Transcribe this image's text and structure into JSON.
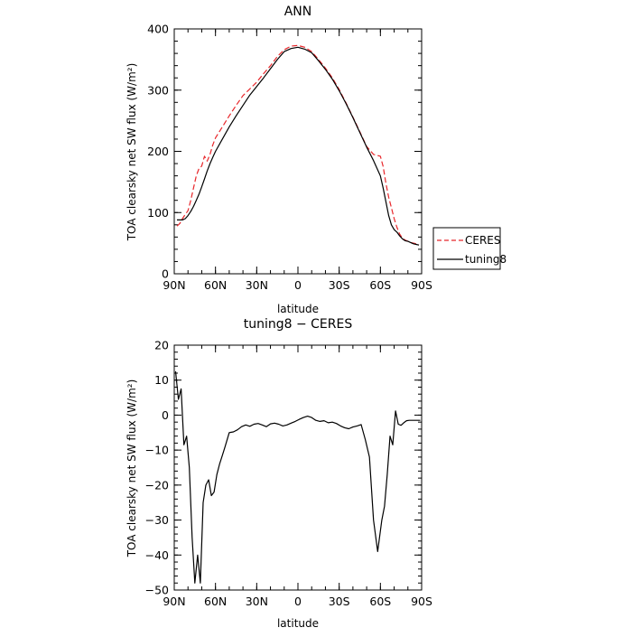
{
  "legend": {
    "ceres_label": "CERES",
    "model_label": "tuning8",
    "ceres_color": "#e8262a",
    "model_color": "#000000",
    "placement": "right"
  },
  "chart_data": [
    {
      "type": "line",
      "title": "ANN",
      "xlabel": "latitude",
      "ylabel": "TOA clearsky net SW flux (W/m²)",
      "xlim": [
        90,
        -90
      ],
      "ylim": [
        0,
        400
      ],
      "yticks": [
        0,
        100,
        200,
        300,
        400
      ],
      "xticks": [
        {
          "value": 90,
          "label": "90N"
        },
        {
          "value": 60,
          "label": "60N"
        },
        {
          "value": 30,
          "label": "30N"
        },
        {
          "value": 0,
          "label": "0"
        },
        {
          "value": -30,
          "label": "30S"
        },
        {
          "value": -60,
          "label": "60S"
        },
        {
          "value": -90,
          "label": "90S"
        }
      ],
      "grid": false,
      "series": [
        {
          "name": "CERES",
          "style": "dashed",
          "x": [
            88,
            86,
            84,
            82,
            80,
            78,
            76,
            74,
            72,
            70,
            68,
            66,
            64,
            62,
            60,
            55,
            50,
            45,
            40,
            35,
            30,
            25,
            20,
            15,
            10,
            5,
            0,
            -5,
            -10,
            -15,
            -20,
            -25,
            -30,
            -35,
            -40,
            -45,
            -50,
            -55,
            -60,
            -62,
            -64,
            -66,
            -68,
            -70,
            -72,
            -74,
            -76,
            -78,
            -80,
            -82,
            -84,
            -86,
            -88
          ],
          "y": [
            78,
            82,
            90,
            97,
            103,
            120,
            140,
            160,
            172,
            176,
            192,
            184,
            195,
            210,
            222,
            240,
            258,
            275,
            291,
            302,
            313,
            327,
            340,
            355,
            366,
            372,
            373,
            370,
            363,
            350,
            336,
            320,
            301,
            279,
            256,
            232,
            208,
            195,
            192,
            175,
            148,
            125,
            108,
            90,
            76,
            65,
            58,
            55,
            53,
            51,
            50,
            49,
            47
          ]
        },
        {
          "name": "tuning8",
          "style": "solid",
          "x": [
            88,
            86,
            84,
            82,
            80,
            78,
            76,
            74,
            72,
            70,
            68,
            66,
            64,
            62,
            60,
            55,
            50,
            45,
            40,
            35,
            30,
            25,
            20,
            15,
            10,
            5,
            0,
            -5,
            -10,
            -15,
            -20,
            -25,
            -30,
            -35,
            -40,
            -45,
            -50,
            -55,
            -60,
            -62,
            -64,
            -66,
            -68,
            -70,
            -72,
            -74,
            -76,
            -78,
            -80,
            -82,
            -84,
            -86,
            -88
          ],
          "y": [
            88,
            88,
            88,
            90,
            95,
            102,
            110,
            120,
            130,
            142,
            155,
            168,
            180,
            190,
            200,
            220,
            240,
            258,
            275,
            292,
            306,
            320,
            335,
            350,
            363,
            368,
            370,
            367,
            361,
            348,
            334,
            318,
            299,
            278,
            255,
            231,
            207,
            185,
            160,
            140,
            118,
            95,
            80,
            72,
            68,
            62,
            57,
            54,
            53,
            51,
            49,
            48,
            47
          ]
        }
      ]
    },
    {
      "type": "line",
      "title": "tuning8 − CERES",
      "xlabel": "latitude",
      "ylabel": "TOA clearsky net SW flux (W/m²)",
      "xlim": [
        90,
        -90
      ],
      "ylim": [
        -50,
        20
      ],
      "yticks": [
        20,
        10,
        0,
        -10,
        -20,
        -30,
        -40,
        -50
      ],
      "xticks": [
        {
          "value": 90,
          "label": "90N"
        },
        {
          "value": 60,
          "label": "60N"
        },
        {
          "value": 30,
          "label": "30N"
        },
        {
          "value": 0,
          "label": "0"
        },
        {
          "value": -30,
          "label": "30S"
        },
        {
          "value": -60,
          "label": "60S"
        },
        {
          "value": -90,
          "label": "90S"
        }
      ],
      "grid": false,
      "series": [
        {
          "name": "",
          "style": "solid",
          "x": [
            89,
            87,
            85,
            83,
            81,
            79,
            77,
            75,
            73,
            71,
            69,
            67,
            65,
            63,
            61,
            59,
            57,
            55,
            53,
            50,
            47,
            44,
            41,
            38,
            35,
            32,
            29,
            26,
            23,
            20,
            17,
            14,
            11,
            8,
            5,
            2,
            -1,
            -4,
            -7,
            -10,
            -13,
            -16,
            -19,
            -22,
            -25,
            -28,
            -31,
            -34,
            -37,
            -40,
            -43,
            -46,
            -49,
            -52,
            -55,
            -58,
            -61,
            -63,
            -65,
            -67,
            -69,
            -71,
            -73,
            -75,
            -77,
            -79,
            -81,
            -83,
            -85,
            -87,
            -89
          ],
          "y": [
            12.5,
            4.5,
            7.5,
            -8.5,
            -6,
            -15,
            -35,
            -48,
            -40,
            -48,
            -25,
            -20,
            -18.5,
            -23,
            -22,
            -17,
            -14,
            -11.5,
            -9,
            -5,
            -4.8,
            -4.2,
            -3.3,
            -2.8,
            -3.2,
            -2.6,
            -2.4,
            -2.8,
            -3.3,
            -2.5,
            -2.3,
            -2.6,
            -3.1,
            -2.8,
            -2.3,
            -1.8,
            -1.2,
            -0.7,
            -0.3,
            -0.7,
            -1.5,
            -1.8,
            -1.6,
            -2.2,
            -2.0,
            -2.4,
            -3.1,
            -3.6,
            -3.9,
            -3.4,
            -3.1,
            -2.7,
            -7,
            -12,
            -30,
            -39,
            -30,
            -26,
            -17,
            -6,
            -8.5,
            1.2,
            -2.6,
            -2.9,
            -2.2,
            -1.6,
            -1.5,
            -1.5,
            -1.5,
            -1.5,
            -1.5
          ]
        }
      ]
    }
  ]
}
